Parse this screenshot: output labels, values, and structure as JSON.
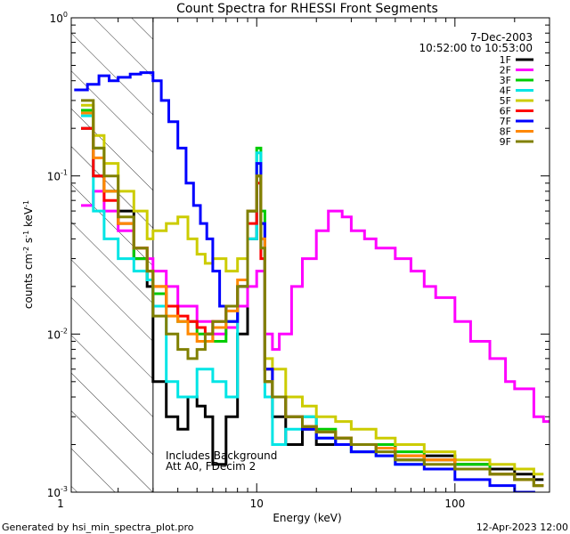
{
  "chart_data": {
    "type": "line",
    "title": "Count Spectra for RHESSI Front Segments",
    "xlabel": "Energy (keV)",
    "ylabel_parts": {
      "a": "counts cm",
      "b": "-2",
      "c": " s",
      "d": "-1",
      "e": " keV",
      "f": "-1"
    },
    "x_scale": "log",
    "y_scale": "log",
    "xlim": [
      1.16,
      300
    ],
    "ylim": [
      0.001,
      1
    ],
    "x_ticks": [
      {
        "value": 1,
        "label": "1"
      },
      {
        "value": 10,
        "label": "10"
      },
      {
        "value": 100,
        "label": "100"
      }
    ],
    "y_ticks": [
      {
        "value": 1,
        "base": "10",
        "exp": "0"
      },
      {
        "value": 0.1,
        "base": "10",
        "exp": "-1"
      },
      {
        "value": 0.01,
        "base": "10",
        "exp": "-2"
      },
      {
        "value": 0.001,
        "base": "10",
        "exp": "-3"
      }
    ],
    "excluded_region": {
      "from": 1.16,
      "to": 3.0
    },
    "date": "7-Dec-2003",
    "time_range": "10:52:00 to 10:53:00",
    "annotation_lines": [
      "Includes Background",
      "Att A0, FDecim 2"
    ],
    "series": [
      {
        "name": "1F",
        "color": "#000000",
        "x": [
          1.3,
          1.5,
          1.7,
          2.0,
          2.4,
          2.8,
          3.0,
          3.5,
          4.0,
          4.5,
          5.0,
          5.5,
          6.0,
          7.0,
          8.0,
          9.0,
          10.0,
          10.5,
          11.0,
          12.0,
          14.0,
          17.0,
          20.0,
          25.0,
          30.0,
          40.0,
          50.0,
          70.0,
          100.0,
          150.0,
          200.0,
          250.0
        ],
        "y": [
          0.2,
          0.1,
          0.08,
          0.06,
          0.03,
          0.02,
          0.005,
          0.003,
          0.0025,
          0.004,
          0.0035,
          0.003,
          0.0015,
          0.003,
          0.01,
          0.04,
          0.1,
          0.05,
          0.005,
          0.003,
          0.002,
          0.0025,
          0.002,
          0.0022,
          0.0018,
          0.002,
          0.0016,
          0.0017,
          0.0015,
          0.0014,
          0.0013,
          0.0012
        ]
      },
      {
        "name": "2F",
        "color": "#ff00ff",
        "x": [
          1.3,
          1.5,
          1.7,
          2.0,
          2.4,
          2.8,
          3.0,
          3.5,
          4.0,
          5.0,
          6.0,
          7.0,
          8.0,
          9.0,
          10.0,
          11.0,
          12.0,
          13.0,
          15.0,
          17.0,
          20.0,
          23.0,
          27.0,
          30.0,
          35.0,
          40.0,
          50.0,
          60.0,
          70.0,
          80.0,
          100.0,
          120.0,
          150.0,
          180.0,
          200.0,
          250.0,
          280.0
        ],
        "y": [
          0.065,
          0.08,
          0.06,
          0.045,
          0.035,
          0.03,
          0.025,
          0.02,
          0.015,
          0.012,
          0.01,
          0.011,
          0.015,
          0.02,
          0.025,
          0.01,
          0.008,
          0.01,
          0.02,
          0.03,
          0.045,
          0.06,
          0.055,
          0.045,
          0.04,
          0.035,
          0.03,
          0.025,
          0.02,
          0.017,
          0.012,
          0.009,
          0.007,
          0.005,
          0.0045,
          0.003,
          0.0028
        ]
      },
      {
        "name": "3F",
        "color": "#00cc00",
        "x": [
          1.3,
          1.5,
          1.7,
          2.0,
          2.4,
          2.8,
          3.0,
          3.5,
          4.0,
          5.0,
          6.0,
          7.0,
          8.0,
          9.0,
          10.0,
          10.5,
          11.0,
          12.0,
          14.0,
          17.0,
          20.0,
          25.0,
          30.0,
          40.0,
          50.0,
          70.0,
          100.0,
          150.0,
          200.0,
          250.0
        ],
        "y": [
          0.26,
          0.15,
          0.08,
          0.05,
          0.03,
          0.022,
          0.018,
          0.015,
          0.012,
          0.01,
          0.009,
          0.012,
          0.02,
          0.06,
          0.15,
          0.06,
          0.006,
          0.004,
          0.003,
          0.003,
          0.0025,
          0.0022,
          0.002,
          0.002,
          0.0018,
          0.0016,
          0.0015,
          0.0013,
          0.0012,
          0.0011
        ]
      },
      {
        "name": "4F",
        "color": "#00e5e5",
        "x": [
          1.3,
          1.5,
          1.7,
          2.0,
          2.4,
          2.8,
          3.0,
          3.5,
          4.0,
          5.0,
          6.0,
          7.0,
          8.0,
          9.0,
          10.0,
          10.5,
          11.0,
          12.0,
          14.0,
          17.0,
          20.0,
          25.0,
          30.0,
          40.0,
          50.0,
          70.0,
          100.0,
          150.0,
          200.0,
          250.0
        ],
        "y": [
          0.24,
          0.06,
          0.04,
          0.03,
          0.025,
          0.022,
          0.015,
          0.005,
          0.004,
          0.006,
          0.005,
          0.004,
          0.02,
          0.04,
          0.14,
          0.05,
          0.004,
          0.002,
          0.0025,
          0.003,
          0.0022,
          0.002,
          0.0018,
          0.0017,
          0.0015,
          0.0016,
          0.0014,
          0.0013,
          0.0012,
          0.0011
        ]
      },
      {
        "name": "5F",
        "color": "#cccc00",
        "x": [
          1.3,
          1.5,
          1.7,
          2.0,
          2.4,
          2.8,
          3.0,
          3.5,
          4.0,
          4.5,
          5.0,
          5.5,
          6.0,
          7.0,
          8.0,
          9.0,
          10.0,
          10.5,
          11.0,
          12.0,
          14.0,
          17.0,
          20.0,
          25.0,
          30.0,
          40.0,
          50.0,
          70.0,
          100.0,
          150.0,
          200.0,
          250.0
        ],
        "y": [
          0.28,
          0.18,
          0.12,
          0.08,
          0.06,
          0.04,
          0.045,
          0.05,
          0.055,
          0.04,
          0.032,
          0.028,
          0.03,
          0.025,
          0.03,
          0.06,
          0.1,
          0.04,
          0.007,
          0.006,
          0.004,
          0.0035,
          0.003,
          0.0028,
          0.0025,
          0.0022,
          0.002,
          0.0018,
          0.0016,
          0.0015,
          0.0014,
          0.0013
        ]
      },
      {
        "name": "6F",
        "color": "#ff0000",
        "x": [
          1.3,
          1.5,
          1.7,
          2.0,
          2.4,
          2.8,
          3.0,
          3.5,
          4.0,
          4.5,
          5.0,
          5.5,
          6.0,
          7.0,
          8.0,
          9.0,
          10.0,
          10.5,
          11.0,
          12.0,
          14.0,
          17.0,
          20.0,
          25.0,
          30.0,
          40.0,
          50.0,
          70.0,
          100.0,
          150.0,
          200.0,
          250.0
        ],
        "y": [
          0.2,
          0.1,
          0.07,
          0.05,
          0.035,
          0.025,
          0.02,
          0.015,
          0.013,
          0.012,
          0.011,
          0.01,
          0.012,
          0.015,
          0.02,
          0.05,
          0.09,
          0.03,
          0.006,
          0.004,
          0.003,
          0.0026,
          0.0024,
          0.0022,
          0.002,
          0.0019,
          0.0017,
          0.0016,
          0.0014,
          0.0013,
          0.0012,
          0.0011
        ]
      },
      {
        "name": "7F",
        "color": "#0000ff",
        "x": [
          1.2,
          1.4,
          1.6,
          1.8,
          2.0,
          2.3,
          2.6,
          3.0,
          3.3,
          3.6,
          4.0,
          4.4,
          4.8,
          5.2,
          5.6,
          6.0,
          6.5,
          7.0,
          8.0,
          9.0,
          10.0,
          10.5,
          11.0,
          12.0,
          14.0,
          17.0,
          20.0,
          25.0,
          30.0,
          40.0,
          50.0,
          70.0,
          100.0,
          150.0,
          200.0,
          250.0
        ],
        "y": [
          0.35,
          0.38,
          0.43,
          0.4,
          0.42,
          0.44,
          0.45,
          0.4,
          0.3,
          0.22,
          0.15,
          0.09,
          0.065,
          0.05,
          0.04,
          0.025,
          0.015,
          0.012,
          0.02,
          0.06,
          0.12,
          0.05,
          0.006,
          0.004,
          0.003,
          0.0025,
          0.0022,
          0.002,
          0.0018,
          0.0017,
          0.0015,
          0.0014,
          0.0012,
          0.0011,
          0.001,
          0.0009
        ]
      },
      {
        "name": "8F",
        "color": "#ff8800",
        "x": [
          1.3,
          1.5,
          1.7,
          2.0,
          2.4,
          2.8,
          3.0,
          3.5,
          4.0,
          4.5,
          5.0,
          5.5,
          6.0,
          7.0,
          8.0,
          9.0,
          10.0,
          10.5,
          11.0,
          12.0,
          14.0,
          17.0,
          20.0,
          25.0,
          30.0,
          40.0,
          50.0,
          70.0,
          100.0,
          150.0,
          200.0,
          250.0
        ],
        "y": [
          0.25,
          0.13,
          0.08,
          0.05,
          0.035,
          0.025,
          0.02,
          0.013,
          0.012,
          0.01,
          0.009,
          0.009,
          0.011,
          0.014,
          0.022,
          0.06,
          0.1,
          0.04,
          0.005,
          0.004,
          0.003,
          0.0026,
          0.0024,
          0.0022,
          0.002,
          0.0019,
          0.0017,
          0.0016,
          0.0014,
          0.0013,
          0.0012,
          0.0011
        ]
      },
      {
        "name": "9F",
        "color": "#808000",
        "x": [
          1.3,
          1.5,
          1.7,
          2.0,
          2.4,
          2.8,
          3.0,
          3.5,
          4.0,
          4.5,
          5.0,
          5.5,
          6.0,
          7.0,
          8.0,
          9.0,
          10.0,
          10.5,
          11.0,
          12.0,
          14.0,
          17.0,
          20.0,
          25.0,
          30.0,
          40.0,
          50.0,
          70.0,
          100.0,
          150.0,
          200.0,
          250.0
        ],
        "y": [
          0.3,
          0.15,
          0.1,
          0.055,
          0.035,
          0.025,
          0.013,
          0.01,
          0.008,
          0.007,
          0.008,
          0.01,
          0.012,
          0.015,
          0.02,
          0.06,
          0.1,
          0.035,
          0.005,
          0.004,
          0.003,
          0.0026,
          0.0024,
          0.0022,
          0.002,
          0.0018,
          0.0016,
          0.0015,
          0.0014,
          0.0013,
          0.0012,
          0.0011
        ]
      }
    ]
  },
  "footer": {
    "generated_by": "Generated by hsi_min_spectra_plot.pro",
    "created": "12-Apr-2023 12:00"
  }
}
